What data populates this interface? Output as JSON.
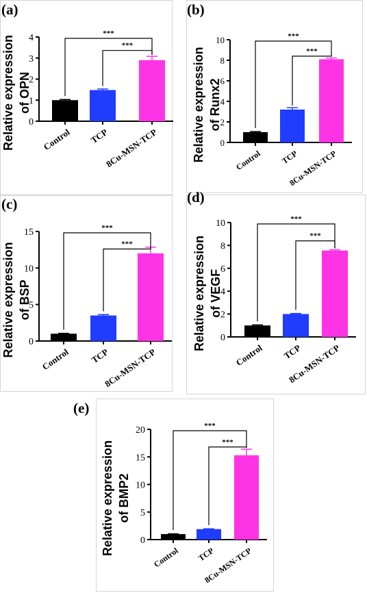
{
  "chart_data": [
    {
      "panel_label": "(a)",
      "type": "bar",
      "categories": [
        "Control",
        "TCP",
        "8Cu-MSN-TCP"
      ],
      "values": [
        1.0,
        1.48,
        2.9
      ],
      "errors": [
        0.03,
        0.05,
        0.18
      ],
      "ylabel_lines": [
        "Relative expression",
        "of OPN"
      ],
      "ylim": [
        0,
        4
      ],
      "yticks": [
        0,
        1,
        2,
        3,
        4
      ],
      "significance": [
        "***",
        "***"
      ]
    },
    {
      "panel_label": "(b)",
      "type": "bar",
      "categories": [
        "Control",
        "TCP",
        "8Cu-MSN-TCP"
      ],
      "values": [
        1.0,
        3.2,
        8.1
      ],
      "errors": [
        0.06,
        0.18,
        0.12
      ],
      "ylabel_lines": [
        "Relative expression",
        "of Runx2"
      ],
      "ylim": [
        0,
        10
      ],
      "yticks": [
        0,
        2,
        4,
        6,
        8,
        10
      ],
      "significance": [
        "***",
        "***"
      ]
    },
    {
      "panel_label": "(c)",
      "type": "bar",
      "categories": [
        "Control",
        "TCP",
        "8Cu-MSN-TCP"
      ],
      "values": [
        1.0,
        3.5,
        12.0
      ],
      "errors": [
        0.05,
        0.12,
        0.85
      ],
      "ylabel_lines": [
        "Relative expression",
        "of BSP"
      ],
      "ylim": [
        0,
        15
      ],
      "yticks": [
        0,
        5,
        10,
        15
      ],
      "significance": [
        "***",
        "***"
      ]
    },
    {
      "panel_label": "(d)",
      "type": "bar",
      "categories": [
        "Control",
        "TCP",
        "8Cu-MSN-TCP"
      ],
      "values": [
        1.0,
        2.0,
        7.55
      ],
      "errors": [
        0.05,
        0.05,
        0.07
      ],
      "ylabel_lines": [
        "Relative expression",
        "of VEGF"
      ],
      "ylim": [
        0,
        10
      ],
      "yticks": [
        0,
        2,
        4,
        6,
        8,
        10
      ],
      "significance": [
        "***",
        "***"
      ]
    },
    {
      "panel_label": "(e)",
      "type": "bar",
      "categories": [
        "Control",
        "TCP",
        "8Cu-MSN-TCP"
      ],
      "values": [
        1.0,
        1.9,
        15.3
      ],
      "errors": [
        0.05,
        0.06,
        1.1
      ],
      "ylabel_lines": [
        "Relative expression",
        "of BMP2"
      ],
      "ylim": [
        0,
        20
      ],
      "yticks": [
        0,
        5,
        10,
        15,
        20
      ],
      "significance": [
        "***",
        "***"
      ]
    }
  ],
  "colors": {
    "bars": [
      "#000000",
      "#1f3cff",
      "#ff33e6"
    ],
    "errors": [
      "#000000",
      "#1f3cff",
      "#ff33e6"
    ]
  }
}
